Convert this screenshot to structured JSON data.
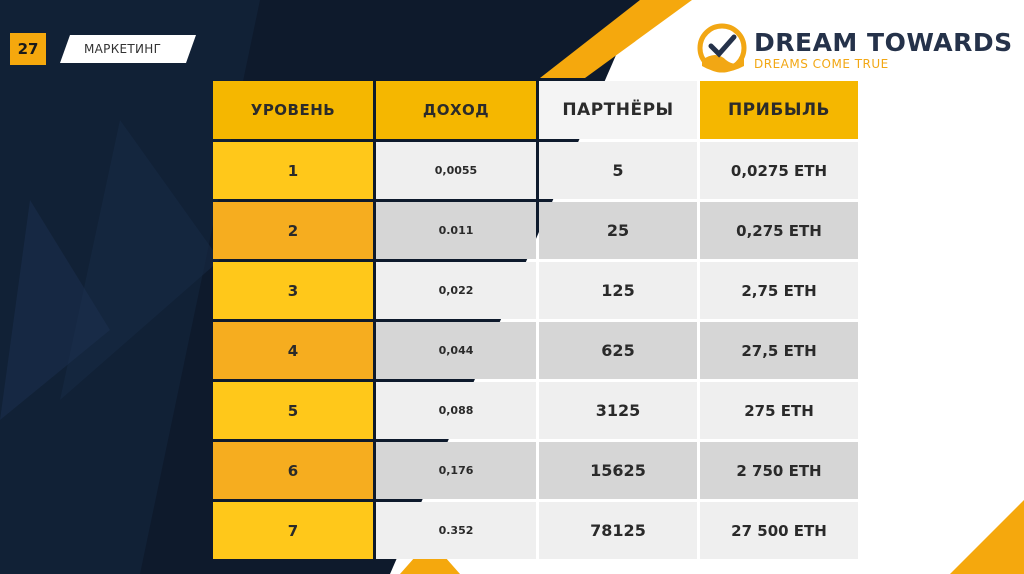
{
  "slide": {
    "number": "27",
    "section": "МАРКЕТИНГ"
  },
  "logo": {
    "title": "DREAM TOWARDS",
    "subtitle": "DREAMS COME TRUE"
  },
  "colors": {
    "accent": "#f5a80d",
    "background": "#0e1a2c",
    "cell_light": "#efefef",
    "cell_dark": "#d6d6d6",
    "level_yellow": "#ffc81a",
    "level_orange": "#f6ad1f"
  },
  "table": {
    "headers": [
      "УРОВЕНЬ",
      "ДОХОД",
      "ПАРТНЁРЫ",
      "ПРИБЫЛЬ"
    ],
    "rows": [
      {
        "level": "1",
        "income": "0,0055",
        "partners": "5",
        "profit": "0,0275 ETH"
      },
      {
        "level": "2",
        "income": "0.011",
        "partners": "25",
        "profit": "0,275 ETH"
      },
      {
        "level": "3",
        "income": "0,022",
        "partners": "125",
        "profit": "2,75 ETH"
      },
      {
        "level": "4",
        "income": "0,044",
        "partners": "625",
        "profit": "27,5 ETH"
      },
      {
        "level": "5",
        "income": "0,088",
        "partners": "3125",
        "profit": "275 ETH"
      },
      {
        "level": "6",
        "income": "0,176",
        "partners": "15625",
        "profit": "2 750 ETH"
      },
      {
        "level": "7",
        "income": "0.352",
        "partners": "78125",
        "profit": "27 500 ETH"
      }
    ]
  }
}
